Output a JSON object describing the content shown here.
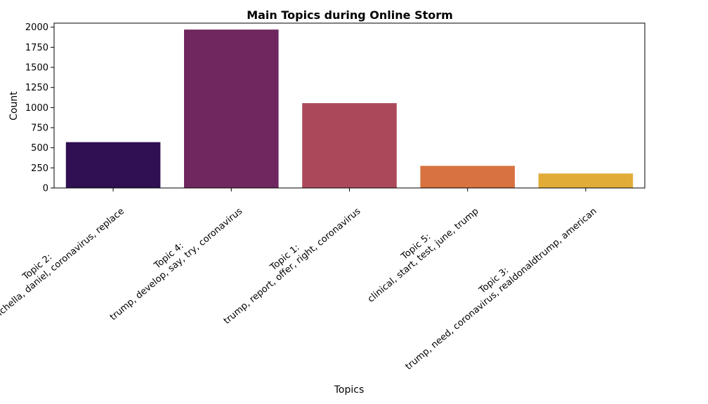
{
  "chart_data": {
    "type": "bar",
    "title": "Main Topics during Online Storm",
    "xlabel": "Topics",
    "ylabel": "Count",
    "ylim": [
      0,
      2050
    ],
    "yticks": [
      0,
      250,
      500,
      750,
      1000,
      1250,
      1500,
      1750,
      2000
    ],
    "categories": [
      {
        "line1": "Topic 2:",
        "line2": "ceo, menichella, daniel, coronavirus, replace"
      },
      {
        "line1": "Topic 4:",
        "line2": "trump, develop, say, try, coronavirus"
      },
      {
        "line1": "Topic 1:",
        "line2": "trump, report, offer, right, coronavirus"
      },
      {
        "line1": "Topic 5:",
        "line2": "clinical, start, test, june, trump"
      },
      {
        "line1": "Topic 3:",
        "line2": "trump, need, coronavirus, realdonaldtrump, american"
      }
    ],
    "values": [
      570,
      1970,
      1055,
      275,
      180
    ],
    "colors": [
      "#300f52",
      "#6f275f",
      "#ab495a",
      "#d87240",
      "#e1ac37"
    ],
    "grid": false,
    "label_rotation_deg": 40
  }
}
